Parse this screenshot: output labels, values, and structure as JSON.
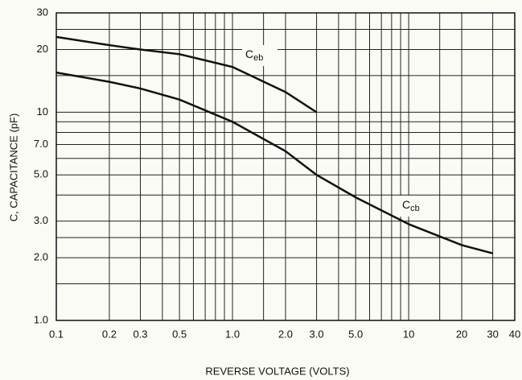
{
  "chart_data": {
    "type": "line",
    "x_label": "REVERSE VOLTAGE (VOLTS)",
    "y_label": "C, CAPACITANCE (pF)",
    "log_x": true,
    "log_y": true,
    "grid": true,
    "xlim": [
      0.1,
      40
    ],
    "ylim": [
      1,
      30
    ],
    "xticks": [
      0.1,
      0.2,
      0.3,
      0.5,
      {
        "value": 1,
        "label": "1.0"
      },
      {
        "value": 2,
        "label": "2.0"
      },
      {
        "value": 3,
        "label": "3.0"
      },
      {
        "value": 5,
        "label": "5.0"
      },
      10,
      20,
      30,
      40
    ],
    "yticks": [
      {
        "value": 1,
        "label": "1.0"
      },
      {
        "value": 2,
        "label": "2.0"
      },
      {
        "value": 3,
        "label": "3.0"
      },
      {
        "value": 5,
        "label": "5.0"
      },
      {
        "value": 7,
        "label": "7.0"
      },
      10,
      20,
      30
    ],
    "xminor": [
      0.4,
      0.6,
      0.7,
      0.8,
      0.9,
      1.5,
      4,
      6,
      7,
      8,
      9,
      15
    ],
    "yminor": [
      1.5,
      2.5,
      4,
      6,
      8,
      9,
      15,
      25
    ],
    "series": [
      {
        "name": "Ceb",
        "color": "#111111",
        "x": [
          0.1,
          0.2,
          0.3,
          0.5,
          1,
          2,
          3
        ],
        "values": [
          23,
          21,
          20,
          19,
          16.5,
          12.5,
          10
        ]
      },
      {
        "name": "Ccb",
        "color": "#111111",
        "x": [
          0.1,
          0.2,
          0.3,
          0.5,
          1,
          2,
          3,
          5,
          10,
          20,
          30
        ],
        "values": [
          15.5,
          14,
          13,
          11.5,
          9,
          6.5,
          5,
          3.9,
          2.9,
          2.3,
          2.1
        ]
      }
    ]
  }
}
